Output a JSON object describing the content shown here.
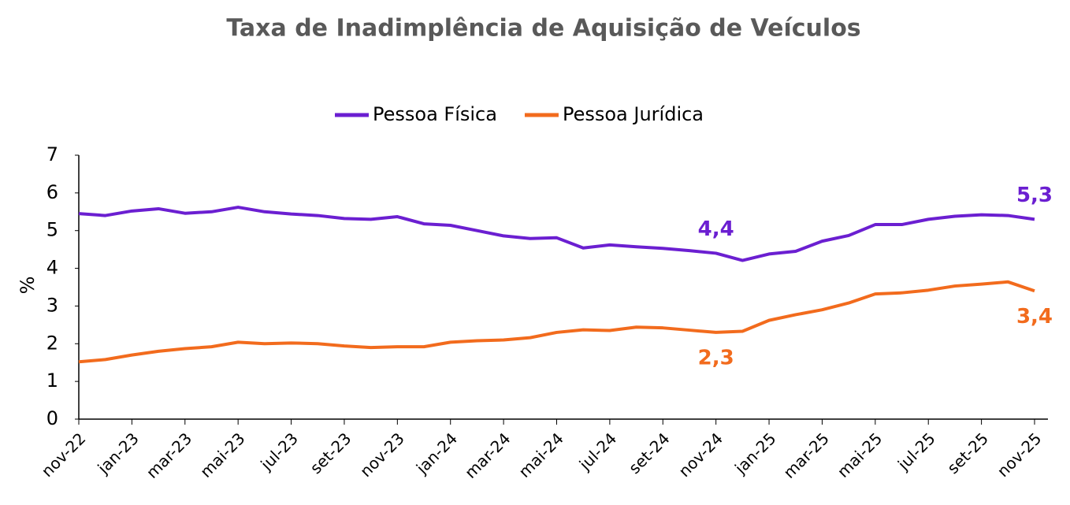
{
  "chart_data": {
    "type": "line",
    "title": "Taxa de Inadimplência de Aquisição de Veículos",
    "y_label": "%",
    "categories": [
      "nov-22",
      null,
      "jan-23",
      null,
      "mar-23",
      null,
      "mai-23",
      null,
      "jul-23",
      null,
      "set-23",
      null,
      "nov-23",
      null,
      "jan-24",
      null,
      "mar-24",
      null,
      "mai-24",
      null,
      "jul-24",
      null,
      "set-24",
      null,
      "nov-24",
      null,
      "jan-25",
      null,
      "mar-25",
      null,
      "mai-25",
      null,
      "jul-25",
      null,
      "set-25",
      null,
      "nov-25"
    ],
    "series": [
      {
        "name": "Pessoa Física",
        "color": "#6b1fd1",
        "values": [
          5.45,
          5.4,
          5.52,
          5.58,
          5.46,
          5.5,
          5.62,
          5.5,
          5.44,
          5.4,
          5.32,
          5.3,
          5.37,
          5.18,
          5.14,
          5.0,
          4.86,
          4.79,
          4.81,
          4.54,
          4.62,
          4.57,
          4.53,
          4.47,
          4.4,
          4.21,
          4.38,
          4.45,
          4.72,
          4.87,
          5.16,
          5.16,
          5.3,
          5.38,
          5.42,
          5.4,
          5.3
        ],
        "value_labels": [
          null,
          null,
          null,
          null,
          null,
          null,
          null,
          null,
          null,
          null,
          null,
          null,
          null,
          null,
          null,
          null,
          null,
          null,
          null,
          null,
          null,
          null,
          null,
          null,
          "4,4",
          null,
          null,
          null,
          null,
          null,
          null,
          null,
          null,
          null,
          null,
          null,
          "5,3"
        ]
      },
      {
        "name": "Pessoa Jurídica",
        "color": "#f26b1d",
        "values": [
          1.52,
          1.58,
          1.7,
          1.8,
          1.87,
          1.92,
          2.04,
          2.0,
          2.02,
          2.0,
          1.94,
          1.9,
          1.92,
          1.92,
          2.04,
          2.08,
          2.1,
          2.16,
          2.3,
          2.37,
          2.35,
          2.44,
          2.42,
          2.36,
          2.3,
          2.33,
          2.62,
          2.77,
          2.9,
          3.08,
          3.32,
          3.35,
          3.42,
          3.53,
          3.58,
          3.64,
          3.4
        ],
        "value_labels": [
          null,
          null,
          null,
          null,
          null,
          null,
          null,
          null,
          null,
          null,
          null,
          null,
          null,
          null,
          null,
          null,
          null,
          null,
          null,
          null,
          null,
          null,
          null,
          null,
          "2,3",
          null,
          null,
          null,
          null,
          null,
          null,
          null,
          null,
          null,
          null,
          null,
          "3,4"
        ]
      }
    ],
    "ylim": [
      0,
      7
    ],
    "yticks": [
      0,
      1,
      2,
      3,
      4,
      5,
      6,
      7
    ],
    "grid": false,
    "legend": "top"
  }
}
